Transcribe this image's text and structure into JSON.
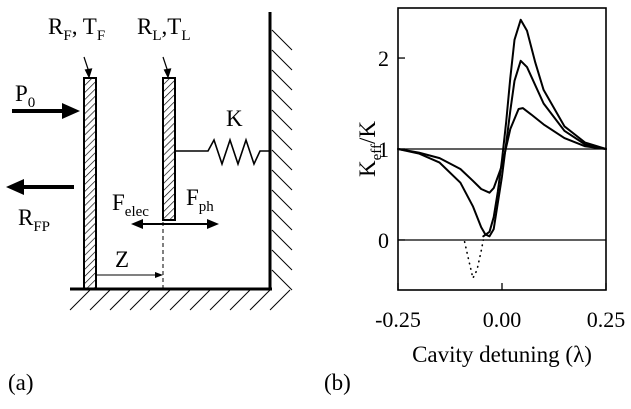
{
  "panel_a": {
    "label": "(a)",
    "mirror_f_label": {
      "R": "R",
      "R_sub": "F",
      "T": "T",
      "T_sub": "F"
    },
    "mirror_l_label": {
      "R": "R",
      "R_sub": "L",
      "T": "T",
      "T_sub": "L"
    },
    "incident_power": {
      "main": "P",
      "sub": "0"
    },
    "reflected_power": {
      "main": "R",
      "sub": "FP"
    },
    "spring_label": "K",
    "force_elec": {
      "main": "F",
      "sub": "elec"
    },
    "force_ph": {
      "main": "F",
      "sub": "ph"
    },
    "gap_label": "Z"
  },
  "panel_b": {
    "label": "(b)",
    "ylabel": {
      "main": "K",
      "sub": "eff",
      "rest": "/K"
    },
    "xlabel": "Cavity detuning (λ)",
    "yticks": [
      "0",
      "1",
      "2"
    ],
    "xticks": [
      "-0.25",
      "0.00",
      "0.25"
    ]
  },
  "chart_data": {
    "type": "line",
    "xlabel": "Cavity detuning (λ)",
    "ylabel": "Keff/K",
    "xlim": [
      -0.25,
      0.25
    ],
    "ylim": [
      -0.55,
      2.55
    ],
    "grid": false,
    "xticks": [
      -0.25,
      0.0,
      0.25
    ],
    "yticks": [
      0,
      1,
      2
    ],
    "reference_lines": [
      0,
      1
    ],
    "series": [
      {
        "style": "solid",
        "x": [
          -0.25,
          -0.2,
          -0.15,
          -0.1,
          -0.07,
          -0.05,
          -0.03,
          -0.02,
          0.0,
          0.02,
          0.04,
          0.05,
          0.07,
          0.1,
          0.15,
          0.2,
          0.25
        ],
        "y": [
          1.0,
          0.96,
          0.9,
          0.78,
          0.65,
          0.56,
          0.52,
          0.57,
          0.82,
          1.22,
          1.44,
          1.45,
          1.38,
          1.27,
          1.12,
          1.03,
          1.0
        ]
      },
      {
        "style": "solid",
        "x": [
          -0.25,
          -0.2,
          -0.15,
          -0.1,
          -0.07,
          -0.05,
          -0.04,
          -0.03,
          -0.02,
          0.0,
          0.02,
          0.03,
          0.045,
          0.06,
          0.08,
          0.1,
          0.15,
          0.2,
          0.25
        ],
        "y": [
          1.0,
          0.95,
          0.85,
          0.63,
          0.37,
          0.14,
          0.06,
          0.04,
          0.12,
          0.7,
          1.42,
          1.75,
          1.97,
          1.9,
          1.7,
          1.5,
          1.2,
          1.05,
          1.0
        ]
      },
      {
        "style": "solid",
        "x": [
          -0.045,
          -0.03,
          -0.02,
          -0.01,
          0.0,
          0.01,
          0.02,
          0.03,
          0.045,
          0.06,
          0.08,
          0.1,
          0.15,
          0.2,
          0.25
        ],
        "y": [
          0.04,
          0.09,
          0.25,
          0.53,
          0.88,
          1.3,
          1.78,
          2.2,
          2.42,
          2.3,
          1.95,
          1.65,
          1.25,
          1.07,
          1.0
        ]
      },
      {
        "style": "dotted",
        "x": [
          -0.09,
          -0.08,
          -0.07,
          -0.06,
          -0.05,
          -0.045
        ],
        "y": [
          -0.02,
          -0.22,
          -0.42,
          -0.33,
          -0.12,
          0.0
        ]
      }
    ]
  }
}
